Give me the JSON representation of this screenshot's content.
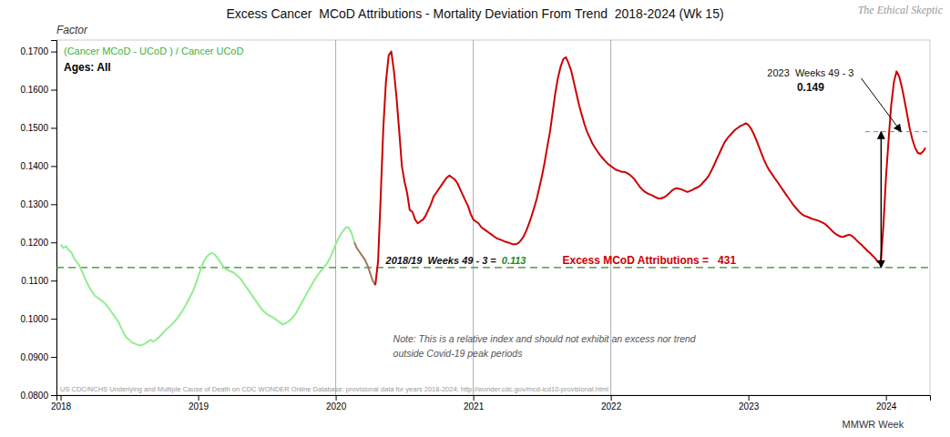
{
  "chart_data": {
    "type": "line",
    "title": "Excess Cancer  MCoD Attributions - Mortality Deviation From Trend  2018-2024 (Wk 15)",
    "watermark": "The Ethical Skeptic",
    "y_label": "Factor",
    "x_label": "MMWR Week",
    "grid": false,
    "xlim": [
      2017.97,
      2024.32
    ],
    "xticks": [
      2018,
      2019,
      2020,
      2021,
      2022,
      2023,
      2024
    ],
    "ylim": [
      0.08,
      0.173
    ],
    "yticks": [
      {
        "value": 0.08,
        "label": "0.0800"
      },
      {
        "value": 0.09,
        "label": "0.0900"
      },
      {
        "value": 0.1,
        "label": "0.1000"
      },
      {
        "value": 0.11,
        "label": "0.1100"
      },
      {
        "value": 0.12,
        "label": "0.1200"
      },
      {
        "value": 0.13,
        "label": "0.1300"
      },
      {
        "value": 0.14,
        "label": "0.1400"
      },
      {
        "value": 0.15,
        "label": "0.1500"
      },
      {
        "value": 0.16,
        "label": "0.1600"
      },
      {
        "value": 0.17,
        "label": "0.1700"
      }
    ],
    "series": [
      {
        "color": "#90EE90",
        "x": [
          2018.0,
          2018.019,
          2018.038,
          2018.058,
          2018.077,
          2018.096,
          2018.115,
          2018.135,
          2018.154,
          2018.173,
          2018.192,
          2018.212,
          2018.231,
          2018.25,
          2018.269,
          2018.288,
          2018.308,
          2018.327,
          2018.346,
          2018.365,
          2018.385,
          2018.404,
          2018.423,
          2018.442,
          2018.462,
          2018.481,
          2018.5,
          2018.519,
          2018.538,
          2018.558,
          2018.577,
          2018.596,
          2018.615,
          2018.635,
          2018.654,
          2018.673,
          2018.692,
          2018.712,
          2018.731,
          2018.75,
          2018.769,
          2018.788,
          2018.808,
          2018.827,
          2018.846,
          2018.865,
          2018.885,
          2018.904,
          2018.923,
          2018.942,
          2018.962,
          2018.981,
          2019.0,
          2019.019,
          2019.038,
          2019.058,
          2019.077,
          2019.096,
          2019.115,
          2019.135,
          2019.154,
          2019.173,
          2019.192,
          2019.212,
          2019.231,
          2019.25,
          2019.269,
          2019.288,
          2019.308,
          2019.327,
          2019.346,
          2019.365,
          2019.385,
          2019.404,
          2019.423,
          2019.442,
          2019.462,
          2019.481,
          2019.5,
          2019.519,
          2019.538,
          2019.558,
          2019.577,
          2019.596,
          2019.615,
          2019.635,
          2019.654,
          2019.673,
          2019.692,
          2019.712,
          2019.731,
          2019.75,
          2019.769,
          2019.788,
          2019.808,
          2019.827,
          2019.846,
          2019.865,
          2019.885,
          2019.904,
          2019.923,
          2019.942,
          2019.962,
          2019.981,
          2020.0,
          2020.019,
          2020.038,
          2020.058,
          2020.077,
          2020.096,
          2020.115,
          2020.135
        ],
        "values": [
          0.1195,
          0.1185,
          0.119,
          0.118,
          0.1175,
          0.116,
          0.115,
          0.114,
          0.1125,
          0.111,
          0.1095,
          0.108,
          0.107,
          0.106,
          0.1055,
          0.105,
          0.1045,
          0.1038,
          0.103,
          0.102,
          0.101,
          0.1,
          0.099,
          0.0975,
          0.096,
          0.095,
          0.0945,
          0.0938,
          0.0935,
          0.0932,
          0.093,
          0.0932,
          0.0935,
          0.094,
          0.0945,
          0.094,
          0.0945,
          0.095,
          0.0958,
          0.0965,
          0.0972,
          0.0978,
          0.0985,
          0.0992,
          0.1,
          0.101,
          0.102,
          0.1032,
          0.1045,
          0.1058,
          0.1072,
          0.109,
          0.111,
          0.113,
          0.1148,
          0.116,
          0.1168,
          0.1172,
          0.117,
          0.1162,
          0.1152,
          0.1142,
          0.1132,
          0.1128,
          0.1125,
          0.1122,
          0.1118,
          0.1112,
          0.1105,
          0.1095,
          0.1085,
          0.1075,
          0.1065,
          0.1055,
          0.1045,
          0.1035,
          0.1025,
          0.1018,
          0.1012,
          0.1008,
          0.1005,
          0.1,
          0.0995,
          0.099,
          0.0985,
          0.0988,
          0.0992,
          0.0998,
          0.1005,
          0.1015,
          0.1028,
          0.104,
          0.1052,
          0.1065,
          0.1078,
          0.109,
          0.1102,
          0.1112,
          0.1122,
          0.113,
          0.1138,
          0.1148,
          0.1162,
          0.1178,
          0.1195,
          0.121,
          0.1222,
          0.1232,
          0.124,
          0.1238,
          0.1225,
          0.12
        ]
      },
      {
        "color": "#A0785A",
        "x": [
          2020.135,
          2020.154,
          2020.173,
          2020.192,
          2020.212,
          2020.231,
          2020.25,
          2020.269,
          2020.288
        ],
        "values": [
          0.12,
          0.1185,
          0.1175,
          0.1165,
          0.1155,
          0.114,
          0.112,
          0.11,
          0.1088
        ]
      },
      {
        "color": "#CC0000",
        "x": [
          2020.288,
          2020.308,
          2020.327,
          2020.346,
          2020.365,
          2020.385,
          2020.404,
          2020.423,
          2020.442,
          2020.462,
          2020.481,
          2020.5,
          2020.519,
          2020.538,
          2020.558,
          2020.577,
          2020.596,
          2020.615,
          2020.635,
          2020.654,
          2020.673,
          2020.692,
          2020.712,
          2020.731,
          2020.75,
          2020.769,
          2020.788,
          2020.808,
          2020.827,
          2020.846,
          2020.865,
          2020.885,
          2020.904,
          2020.923,
          2020.942,
          2020.962,
          2020.981,
          2021.0,
          2021.019,
          2021.038,
          2021.058,
          2021.077,
          2021.096,
          2021.115,
          2021.135,
          2021.154,
          2021.173,
          2021.192,
          2021.212,
          2021.231,
          2021.25,
          2021.269,
          2021.288,
          2021.308,
          2021.327,
          2021.346,
          2021.365,
          2021.385,
          2021.404,
          2021.423,
          2021.442,
          2021.462,
          2021.481,
          2021.5,
          2021.519,
          2021.538,
          2021.558,
          2021.577,
          2021.596,
          2021.615,
          2021.635,
          2021.654,
          2021.673,
          2021.692,
          2021.712,
          2021.731,
          2021.75,
          2021.769,
          2021.788,
          2021.808,
          2021.827,
          2021.846,
          2021.865,
          2021.885,
          2021.904,
          2021.923,
          2021.942,
          2021.962,
          2021.981,
          2022.0,
          2022.019,
          2022.038,
          2022.058,
          2022.077,
          2022.096,
          2022.115,
          2022.135,
          2022.154,
          2022.173,
          2022.192,
          2022.212,
          2022.231,
          2022.25,
          2022.269,
          2022.288,
          2022.308,
          2022.327,
          2022.346,
          2022.365,
          2022.385,
          2022.404,
          2022.423,
          2022.442,
          2022.462,
          2022.481,
          2022.5,
          2022.519,
          2022.538,
          2022.558,
          2022.577,
          2022.596,
          2022.615,
          2022.635,
          2022.654,
          2022.673,
          2022.692,
          2022.712,
          2022.731,
          2022.75,
          2022.769,
          2022.788,
          2022.808,
          2022.827,
          2022.846,
          2022.865,
          2022.885,
          2022.904,
          2022.923,
          2022.942,
          2022.962,
          2022.981,
          2023.0,
          2023.019,
          2023.038,
          2023.058,
          2023.077,
          2023.096,
          2023.115,
          2023.135,
          2023.154,
          2023.173,
          2023.192,
          2023.212,
          2023.231,
          2023.25,
          2023.269,
          2023.288,
          2023.308,
          2023.327,
          2023.346,
          2023.365,
          2023.385,
          2023.404,
          2023.423,
          2023.442,
          2023.462,
          2023.481,
          2023.5,
          2023.519,
          2023.538,
          2023.558,
          2023.577,
          2023.596,
          2023.615,
          2023.635,
          2023.654,
          2023.673,
          2023.692,
          2023.712,
          2023.731,
          2023.75,
          2023.769,
          2023.788,
          2023.808,
          2023.827,
          2023.846,
          2023.865,
          2023.885,
          2023.904,
          2023.923,
          2023.942,
          2023.962,
          2023.981,
          2024.0,
          2024.019,
          2024.038,
          2024.058,
          2024.077,
          2024.096,
          2024.115,
          2024.135,
          2024.154,
          2024.173,
          2024.192,
          2024.212,
          2024.231,
          2024.25,
          2024.269,
          2024.288
        ],
        "values": [
          0.1088,
          0.115,
          0.132,
          0.15,
          0.162,
          0.169,
          0.17,
          0.165,
          0.158,
          0.149,
          0.14,
          0.136,
          0.133,
          0.1285,
          0.128,
          0.126,
          0.125,
          0.1255,
          0.126,
          0.127,
          0.1285,
          0.13,
          0.132,
          0.133,
          0.134,
          0.135,
          0.136,
          0.137,
          0.1375,
          0.137,
          0.1365,
          0.1355,
          0.134,
          0.1325,
          0.131,
          0.1295,
          0.1275,
          0.126,
          0.1255,
          0.125,
          0.124,
          0.1235,
          0.123,
          0.1225,
          0.122,
          0.1215,
          0.121,
          0.1208,
          0.1205,
          0.1202,
          0.12,
          0.1198,
          0.1195,
          0.1195,
          0.1198,
          0.1205,
          0.1215,
          0.123,
          0.1248,
          0.1268,
          0.129,
          0.1315,
          0.1345,
          0.1375,
          0.141,
          0.145,
          0.149,
          0.154,
          0.159,
          0.163,
          0.166,
          0.168,
          0.1685,
          0.167,
          0.165,
          0.162,
          0.159,
          0.156,
          0.1535,
          0.151,
          0.149,
          0.1475,
          0.146,
          0.1448,
          0.1438,
          0.1428,
          0.142,
          0.1412,
          0.1405,
          0.14,
          0.1395,
          0.139,
          0.1388,
          0.1385,
          0.1385,
          0.1382,
          0.1378,
          0.1372,
          0.1365,
          0.1355,
          0.1345,
          0.1338,
          0.1332,
          0.1328,
          0.1325,
          0.1322,
          0.1318,
          0.1315,
          0.1315,
          0.1318,
          0.1322,
          0.1328,
          0.1335,
          0.134,
          0.1342,
          0.134,
          0.1338,
          0.1335,
          0.1332,
          0.1335,
          0.1338,
          0.1342,
          0.1345,
          0.135,
          0.1358,
          0.1365,
          0.1375,
          0.1388,
          0.1402,
          0.1418,
          0.1432,
          0.1448,
          0.1462,
          0.1472,
          0.148,
          0.1488,
          0.1495,
          0.15,
          0.1505,
          0.1508,
          0.1512,
          0.1508,
          0.1498,
          0.1485,
          0.1468,
          0.145,
          0.1432,
          0.1415,
          0.14,
          0.1388,
          0.1378,
          0.1368,
          0.1358,
          0.1348,
          0.1338,
          0.1328,
          0.1318,
          0.1308,
          0.1298,
          0.129,
          0.1282,
          0.1275,
          0.127,
          0.1268,
          0.1265,
          0.1262,
          0.126,
          0.1258,
          0.1255,
          0.1252,
          0.1248,
          0.1242,
          0.1235,
          0.1228,
          0.1222,
          0.1218,
          0.1215,
          0.1215,
          0.1218,
          0.122,
          0.1218,
          0.1212,
          0.1205,
          0.1198,
          0.1192,
          0.1185,
          0.1178,
          0.1172,
          0.1165,
          0.1158,
          0.1148,
          0.1148,
          0.124,
          0.1368,
          0.1468,
          0.1558,
          0.162,
          0.1648,
          0.1635,
          0.1608,
          0.1572,
          0.1535,
          0.1498,
          0.147,
          0.1448,
          0.1435,
          0.1432,
          0.1438,
          0.1448
        ]
      }
    ],
    "baseline": {
      "value": 0.1134,
      "color": "#2E8B22",
      "line_style": "dashed"
    },
    "vlines": [
      2020.0,
      2021.0,
      2022.0
    ],
    "reference_line": {
      "x": [
        2023.85,
        2024.3
      ],
      "y": 0.149,
      "line_style": "dashed"
    },
    "range_arrow": {
      "x": 2023.965,
      "y": [
        0.1134,
        0.149
      ]
    },
    "pointer_arrow": {
      "x": [
        2023.82,
        2024.11
      ],
      "y": [
        0.163,
        0.149
      ]
    },
    "annotations": {
      "formula": {
        "text": "(Cancer MCoD - UCoD ) / Cancer UCoD",
        "color": "#3CB33C"
      },
      "ages": {
        "text": "Ages: All"
      },
      "baseline_label": {
        "text": "2018/19  Weeks 49 - 3 ="
      },
      "baseline_number": {
        "text": "0.113",
        "color": "#228B22"
      },
      "label_2023": {
        "text": "2023  Weeks 49 - 3"
      },
      "value_2023": {
        "text": "0.149"
      },
      "excess": {
        "text": "Excess MCoD Attributions =   431",
        "color": "#CC0000"
      },
      "note": [
        "Note: This is a relative index and should not exhibit an excess nor trend",
        "outside Covid-19 peak periods"
      ],
      "source": {
        "text": "US CDC/NCHS Underlying and Multiple Cause of Death on CDC WONDER Online Database: provisional data for years 2018-2024; http://wonder.cdc.gov/mcd-icd10-provisional.html"
      }
    }
  }
}
